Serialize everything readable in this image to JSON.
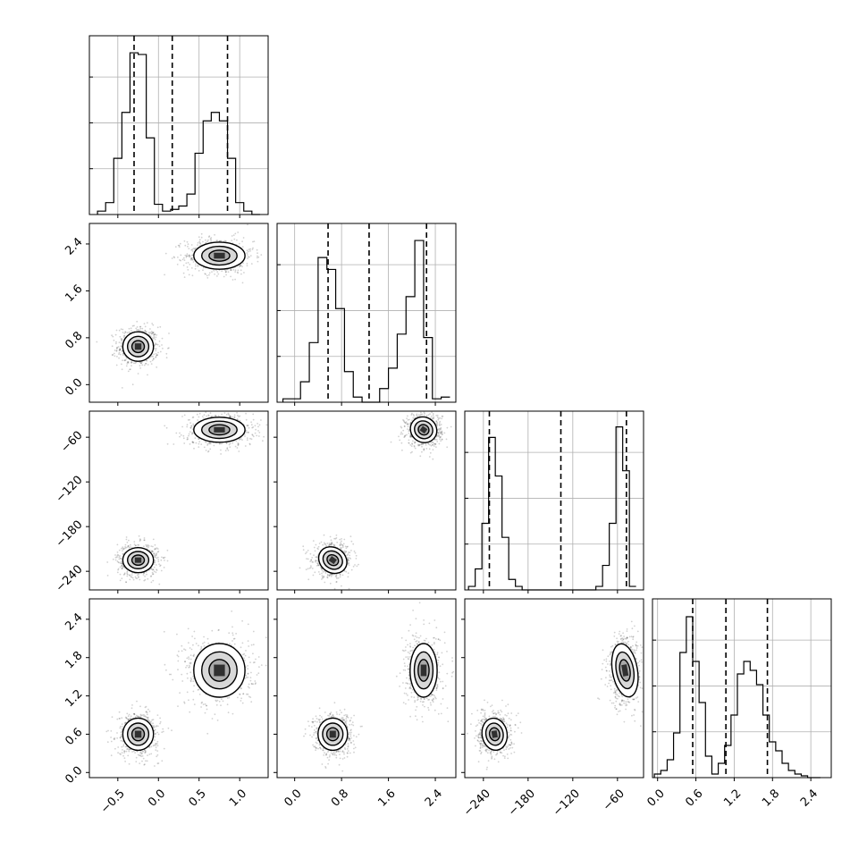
{
  "chart_data": {
    "type": "corner",
    "title": "",
    "parameters": [
      "",
      "",
      "",
      ""
    ],
    "ranges": [
      [
        -0.85,
        1.35
      ],
      [
        -0.3,
        2.75
      ],
      [
        -265,
        -25
      ],
      [
        -0.08,
        2.72
      ]
    ],
    "ticks": [
      {
        "values": [
          -0.5,
          0.0,
          0.5,
          1.0
        ],
        "labels": [
          "−0.5",
          "0.0",
          "0.5",
          "1.0"
        ]
      },
      {
        "values": [
          0.0,
          0.8,
          1.6,
          2.4
        ],
        "labels": [
          "0.0",
          "0.8",
          "1.6",
          "2.4"
        ]
      },
      {
        "values": [
          -240,
          -180,
          -120,
          -60
        ],
        "labels": [
          "−240",
          "−180",
          "−120",
          "−60"
        ]
      },
      {
        "values": [
          0.0,
          0.6,
          1.2,
          1.8,
          2.4
        ],
        "labels": [
          "0.0",
          "0.6",
          "1.2",
          "1.8",
          "2.4"
        ]
      }
    ],
    "quantiles": [
      [
        -0.3,
        0.17,
        0.85
      ],
      [
        0.57,
        1.27,
        2.25
      ],
      [
        -232,
        -136,
        -48
      ],
      [
        0.55,
        1.07,
        1.72
      ]
    ],
    "histograms": [
      {
        "edges": [
          -0.75,
          -0.65,
          -0.55,
          -0.45,
          -0.35,
          -0.25,
          -0.15,
          -0.05,
          0.05,
          0.15,
          0.25,
          0.35,
          0.45,
          0.55,
          0.65,
          0.75,
          0.85,
          0.95,
          1.05,
          1.15,
          1.25
        ],
        "counts": [
          0.02,
          0.07,
          0.33,
          0.6,
          0.95,
          0.94,
          0.45,
          0.06,
          0.02,
          0.03,
          0.05,
          0.12,
          0.36,
          0.55,
          0.6,
          0.55,
          0.33,
          0.07,
          0.02,
          0.0
        ]
      },
      {
        "edges": [
          -0.2,
          -0.05,
          0.1,
          0.25,
          0.4,
          0.55,
          0.7,
          0.85,
          1.0,
          1.15,
          1.3,
          1.45,
          1.6,
          1.75,
          1.9,
          2.05,
          2.2,
          2.35,
          2.5,
          2.65
        ],
        "counts": [
          0.02,
          0.02,
          0.12,
          0.35,
          0.85,
          0.78,
          0.55,
          0.18,
          0.03,
          0.0,
          0.0,
          0.08,
          0.2,
          0.4,
          0.62,
          0.95,
          0.38,
          0.02,
          0.03
        ]
      },
      {
        "edges": [
          -260,
          -251,
          -242,
          -233,
          -224,
          -215,
          -206,
          -197,
          -188,
          -179,
          -170,
          -161,
          -152,
          -143,
          -134,
          -125,
          -116,
          -107,
          -98,
          -89,
          -80,
          -71,
          -62,
          -53,
          -44,
          -35
        ],
        "counts": [
          0.02,
          0.12,
          0.38,
          0.87,
          0.65,
          0.3,
          0.06,
          0.02,
          0.0,
          0.0,
          0.0,
          0.0,
          0.0,
          0.0,
          0.0,
          0.0,
          0.0,
          0.0,
          0.0,
          0.02,
          0.14,
          0.38,
          0.93,
          0.68,
          0.02
        ]
      },
      {
        "edges": [
          -0.05,
          0.05,
          0.15,
          0.25,
          0.35,
          0.45,
          0.55,
          0.65,
          0.75,
          0.85,
          0.95,
          1.05,
          1.15,
          1.25,
          1.35,
          1.45,
          1.55,
          1.65,
          1.75,
          1.85,
          1.95,
          2.05,
          2.15,
          2.25,
          2.35,
          2.45,
          2.55
        ],
        "counts": [
          0.02,
          0.04,
          0.1,
          0.25,
          0.7,
          0.9,
          0.65,
          0.42,
          0.12,
          0.02,
          0.08,
          0.18,
          0.35,
          0.58,
          0.65,
          0.6,
          0.52,
          0.35,
          0.2,
          0.15,
          0.08,
          0.04,
          0.02,
          0.01,
          0.0,
          0.0
        ]
      }
    ],
    "hist_ymax": [
      1.05,
      1.05,
      1.02,
      1.0
    ],
    "hist_gridlines": [
      3,
      3,
      3,
      3
    ],
    "modes": [
      {
        "x": [
          -0.25,
          0.75
        ],
        "sd": [
          0.09,
          0.15
        ]
      },
      {
        "x": [
          0.65,
          2.2
        ],
        "sd": [
          0.12,
          0.11
        ]
      },
      {
        "x": [
          -225,
          -50
        ],
        "sd": [
          8,
          8
        ]
      },
      {
        "x": [
          0.6,
          1.6
        ],
        "sd": [
          0.12,
          0.2
        ]
      }
    ],
    "grid": true
  }
}
